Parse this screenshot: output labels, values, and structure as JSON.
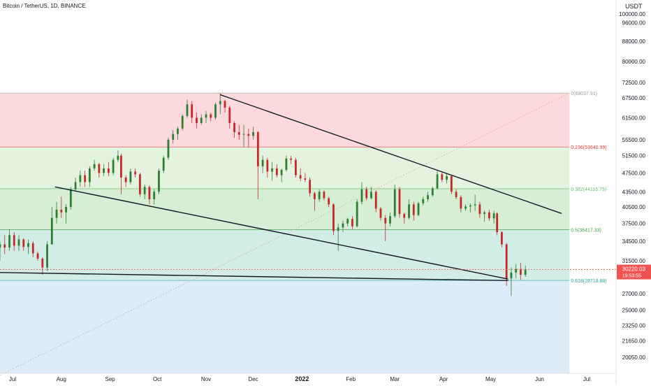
{
  "header": {
    "symbol_title": "Bitcoin / TetherUS, 1D, BINANCE",
    "currency": "USDT"
  },
  "colors": {
    "up": "#26a69a",
    "down": "#ef5350",
    "candle_up": "#2e7d32",
    "candle_down": "#c62828",
    "fib_zone_top": "#fbd9dd",
    "fib_zone_mid1": "#e3f3e0",
    "fib_zone_mid2": "#d6eed6",
    "fib_zone_mid3": "#d2ece6",
    "fib_zone_low": "#dcecf9"
  },
  "chart_data": {
    "type": "candlestick",
    "instrument": "Bitcoin / TetherUS",
    "interval": "1D",
    "exchange": "BINANCE",
    "y_axis": {
      "scale": "log",
      "ticks": [
        "100000.00",
        "96000.00",
        "88000.00",
        "80000.00",
        "72500.00",
        "67500.00",
        "61500.00",
        "55500.00",
        "51500.00",
        "47500.00",
        "43500.00",
        "40500.00",
        "37500.00",
        "34500.00",
        "31500.00",
        "27000.00",
        "25000.00",
        "23250.00",
        "21650.00",
        "20050.00"
      ],
      "tick_values": [
        100000,
        96000,
        88000,
        80000,
        72500,
        67500,
        61500,
        55500,
        51500,
        47500,
        43500,
        40500,
        37500,
        34500,
        31500,
        27000,
        25000,
        23250,
        21650,
        20050
      ]
    },
    "x_axis": {
      "ticks": [
        {
          "label": "Jul",
          "date": "2021-07-01"
        },
        {
          "label": "Aug",
          "date": "2021-08-01"
        },
        {
          "label": "Sep",
          "date": "2021-09-01"
        },
        {
          "label": "Oct",
          "date": "2021-10-01"
        },
        {
          "label": "Nov",
          "date": "2021-11-01"
        },
        {
          "label": "Dec",
          "date": "2021-12-01"
        },
        {
          "label": "2022",
          "date": "2022-01-01"
        },
        {
          "label": "Feb",
          "date": "2022-02-01"
        },
        {
          "label": "Mar",
          "date": "2022-03-01"
        },
        {
          "label": "Apr",
          "date": "2022-04-01"
        },
        {
          "label": "May",
          "date": "2022-05-01"
        },
        {
          "label": "Jun",
          "date": "2022-06-01"
        },
        {
          "label": "Jul",
          "date": "2022-07-01"
        }
      ]
    },
    "fib_levels": [
      {
        "label": "0(69037.91)",
        "value": 69037.91
      },
      {
        "label": "0.236(53640.99)",
        "value": 53640.99
      },
      {
        "label": "0.382(44116.79)",
        "value": 44116.79
      },
      {
        "label": "0.5(36417.33)",
        "value": 36417.33
      },
      {
        "label": "0.618(28718.88)",
        "value": 28718.88
      }
    ],
    "fib_range": {
      "start_date": "2021-06-01",
      "end_date": "2022-06-20"
    },
    "fib_trend_line": [
      {
        "date": "2021-06-01",
        "value": 17000
      },
      {
        "date": "2022-06-20",
        "value": 69037.91
      }
    ],
    "trend_lines": [
      {
        "name": "upper-resistance",
        "points": [
          {
            "date": "2021-11-10",
            "value": 68500
          },
          {
            "date": "2022-06-15",
            "value": 39300
          }
        ]
      },
      {
        "name": "middle-support",
        "points": [
          {
            "date": "2021-07-28",
            "value": 44500
          },
          {
            "date": "2022-05-12",
            "value": 28900
          }
        ]
      },
      {
        "name": "lower-support",
        "points": [
          {
            "date": "2021-06-01",
            "value": 29800
          },
          {
            "date": "2022-05-12",
            "value": 28700
          }
        ]
      }
    ],
    "last_price": {
      "value": 30220.03,
      "label": "30220.03",
      "countdown": "19:53:55"
    },
    "candles": [
      [
        "2021-06-10",
        35500,
        37500,
        35000,
        37000
      ],
      [
        "2021-06-14",
        37000,
        39500,
        36500,
        39000
      ],
      [
        "2021-06-17",
        39000,
        39500,
        36500,
        37000
      ],
      [
        "2021-06-20",
        37000,
        37500,
        33000,
        33500
      ],
      [
        "2021-06-23",
        33500,
        34500,
        31500,
        34000
      ],
      [
        "2021-06-26",
        34000,
        35500,
        32500,
        33500
      ],
      [
        "2021-06-29",
        33500,
        36500,
        33000,
        35500
      ],
      [
        "2021-07-02",
        35500,
        36000,
        33000,
        33800
      ],
      [
        "2021-07-05",
        33800,
        35500,
        33000,
        34800
      ],
      [
        "2021-07-08",
        34800,
        35000,
        33000,
        33600
      ],
      [
        "2021-07-11",
        33600,
        34800,
        32500,
        34200
      ],
      [
        "2021-07-14",
        34200,
        34500,
        32000,
        32600
      ],
      [
        "2021-07-17",
        32600,
        32900,
        31500,
        31800
      ],
      [
        "2021-07-20",
        31800,
        32000,
        29500,
        30500
      ],
      [
        "2021-07-23",
        30500,
        34500,
        30000,
        34000
      ],
      [
        "2021-07-26",
        34000,
        40500,
        34000,
        38500
      ],
      [
        "2021-07-29",
        38500,
        41500,
        37500,
        40000
      ],
      [
        "2021-08-01",
        40000,
        42500,
        38500,
        39500
      ],
      [
        "2021-08-04",
        39500,
        41000,
        37500,
        40500
      ],
      [
        "2021-08-07",
        40500,
        44500,
        40000,
        44000
      ],
      [
        "2021-08-10",
        44000,
        46500,
        43500,
        45500
      ],
      [
        "2021-08-13",
        45500,
        48000,
        44500,
        47000
      ],
      [
        "2021-08-16",
        47000,
        48000,
        44500,
        45500
      ],
      [
        "2021-08-19",
        45500,
        49000,
        44500,
        48500
      ],
      [
        "2021-08-22",
        48500,
        50500,
        48000,
        49500
      ],
      [
        "2021-08-25",
        49500,
        49800,
        46500,
        47500
      ],
      [
        "2021-08-28",
        47500,
        49500,
        46800,
        48500
      ],
      [
        "2021-08-31",
        48500,
        50000,
        46800,
        47500
      ],
      [
        "2021-09-03",
        47500,
        51000,
        47000,
        50500
      ],
      [
        "2021-09-06",
        50500,
        52800,
        50000,
        51500
      ],
      [
        "2021-09-08",
        51500,
        52000,
        43000,
        46500
      ],
      [
        "2021-09-11",
        46500,
        47000,
        44500,
        45500
      ],
      [
        "2021-09-14",
        45500,
        48500,
        45000,
        47800
      ],
      [
        "2021-09-17",
        47800,
        48500,
        46500,
        47200
      ],
      [
        "2021-09-20",
        47200,
        47500,
        42500,
        43000
      ],
      [
        "2021-09-23",
        43000,
        45000,
        42000,
        44500
      ],
      [
        "2021-09-26",
        44500,
        44800,
        41000,
        42000
      ],
      [
        "2021-09-29",
        42000,
        44000,
        41000,
        43500
      ],
      [
        "2021-10-02",
        43500,
        48500,
        43000,
        48000
      ],
      [
        "2021-10-05",
        48000,
        51500,
        47500,
        51000
      ],
      [
        "2021-10-08",
        51000,
        56000,
        50500,
        55500
      ],
      [
        "2021-10-11",
        55500,
        58000,
        54500,
        57000
      ],
      [
        "2021-10-14",
        57000,
        59000,
        55500,
        58500
      ],
      [
        "2021-10-17",
        58500,
        62500,
        58000,
        62000
      ],
      [
        "2021-10-20",
        62000,
        67000,
        61500,
        65500
      ],
      [
        "2021-10-23",
        65500,
        66500,
        60000,
        61500
      ],
      [
        "2021-10-26",
        61500,
        63000,
        58500,
        60000
      ],
      [
        "2021-10-29",
        60000,
        62500,
        59500,
        61500
      ],
      [
        "2021-11-01",
        61500,
        63500,
        60000,
        62500
      ],
      [
        "2021-11-04",
        62500,
        63000,
        60500,
        61500
      ],
      [
        "2021-11-07",
        61500,
        66000,
        61000,
        65500
      ],
      [
        "2021-11-10",
        65500,
        69000,
        62500,
        66500
      ],
      [
        "2021-11-13",
        66500,
        67000,
        63000,
        64500
      ],
      [
        "2021-11-16",
        64500,
        65000,
        58500,
        60000
      ],
      [
        "2021-11-19",
        60000,
        60500,
        56000,
        57500
      ],
      [
        "2021-11-22",
        57500,
        59500,
        55500,
        56800
      ],
      [
        "2021-11-25",
        56800,
        59500,
        53500,
        57000
      ],
      [
        "2021-11-28",
        57000,
        58500,
        53500,
        56500
      ],
      [
        "2021-12-01",
        56500,
        59000,
        55500,
        57500
      ],
      [
        "2021-12-04",
        57500,
        57800,
        42000,
        49000
      ],
      [
        "2021-12-07",
        49000,
        51500,
        47500,
        50500
      ],
      [
        "2021-12-10",
        50500,
        51000,
        46500,
        47800
      ],
      [
        "2021-12-13",
        47800,
        50000,
        45800,
        48500
      ],
      [
        "2021-12-16",
        48500,
        49500,
        46500,
        47000
      ],
      [
        "2021-12-19",
        47000,
        48500,
        45500,
        48200
      ],
      [
        "2021-12-22",
        48200,
        51500,
        47800,
        50800
      ],
      [
        "2021-12-25",
        50800,
        51500,
        49500,
        50500
      ],
      [
        "2021-12-28",
        50500,
        51000,
        46500,
        47000
      ],
      [
        "2021-12-31",
        47000,
        48500,
        45700,
        46300
      ],
      [
        "2022-01-03",
        46300,
        47500,
        45500,
        46000
      ],
      [
        "2022-01-06",
        46000,
        46500,
        42500,
        43200
      ],
      [
        "2022-01-09",
        43200,
        43500,
        39800,
        42000
      ],
      [
        "2022-01-12",
        42000,
        44000,
        41500,
        43500
      ],
      [
        "2022-01-15",
        43500,
        43800,
        41800,
        42200
      ],
      [
        "2022-01-18",
        42200,
        42500,
        40500,
        41000
      ],
      [
        "2022-01-21",
        41000,
        41200,
        35500,
        36200
      ],
      [
        "2022-01-24",
        36200,
        37500,
        33000,
        36800
      ],
      [
        "2022-01-27",
        36800,
        38000,
        36000,
        37500
      ],
      [
        "2022-01-30",
        37500,
        38500,
        37000,
        38300
      ],
      [
        "2022-02-02",
        38300,
        38800,
        36500,
        37000
      ],
      [
        "2022-02-05",
        37000,
        42000,
        36800,
        41500
      ],
      [
        "2022-02-08",
        41500,
        45500,
        41000,
        44000
      ],
      [
        "2022-02-11",
        44000,
        44500,
        41800,
        42200
      ],
      [
        "2022-02-14",
        42200,
        44500,
        42000,
        43500
      ],
      [
        "2022-02-17",
        43500,
        43800,
        39500,
        40200
      ],
      [
        "2022-02-20",
        40200,
        40500,
        38000,
        38500
      ],
      [
        "2022-02-23",
        38500,
        39000,
        34500,
        37500
      ],
      [
        "2022-02-26",
        37500,
        39500,
        37000,
        38800
      ],
      [
        "2022-03-01",
        38800,
        45000,
        38500,
        44000
      ],
      [
        "2022-03-04",
        44000,
        44500,
        38500,
        39200
      ],
      [
        "2022-03-07",
        39200,
        39500,
        37500,
        38500
      ],
      [
        "2022-03-10",
        38500,
        42000,
        38200,
        41000
      ],
      [
        "2022-03-13",
        41000,
        41500,
        38000,
        39000
      ],
      [
        "2022-03-16",
        39000,
        41500,
        38800,
        41200
      ],
      [
        "2022-03-19",
        41200,
        42500,
        40800,
        42000
      ],
      [
        "2022-03-22",
        42000,
        43500,
        41500,
        42800
      ],
      [
        "2022-03-25",
        42800,
        44500,
        42500,
        44200
      ],
      [
        "2022-03-28",
        44200,
        48000,
        44000,
        47200
      ],
      [
        "2022-03-31",
        47200,
        47800,
        45500,
        46000
      ],
      [
        "2022-04-03",
        46000,
        47500,
        45200,
        46800
      ],
      [
        "2022-04-06",
        46800,
        47000,
        43000,
        43500
      ],
      [
        "2022-04-09",
        43500,
        44000,
        42000,
        42400
      ],
      [
        "2022-04-12",
        42400,
        42800,
        39500,
        40200
      ],
      [
        "2022-04-15",
        40200,
        41000,
        39800,
        40600
      ],
      [
        "2022-04-18",
        40600,
        41200,
        39500,
        40800
      ],
      [
        "2022-04-21",
        40800,
        42900,
        39800,
        41000
      ],
      [
        "2022-04-24",
        41000,
        41500,
        38500,
        39200
      ],
      [
        "2022-04-27",
        39200,
        39800,
        37800,
        39500
      ],
      [
        "2022-04-30",
        39500,
        40000,
        38000,
        38400
      ],
      [
        "2022-05-03",
        38400,
        39800,
        37500,
        39300
      ],
      [
        "2022-05-05",
        39300,
        39500,
        35500,
        36000
      ],
      [
        "2022-05-08",
        36000,
        36200,
        33500,
        34000
      ],
      [
        "2022-05-11",
        34000,
        34200,
        28000,
        29000
      ],
      [
        "2022-05-14",
        29000,
        30500,
        26700,
        29800
      ],
      [
        "2022-05-17",
        29800,
        31000,
        29000,
        30300
      ],
      [
        "2022-05-20",
        30300,
        31200,
        28800,
        29500
      ],
      [
        "2022-05-23",
        29500,
        30800,
        29200,
        30220
      ]
    ]
  }
}
